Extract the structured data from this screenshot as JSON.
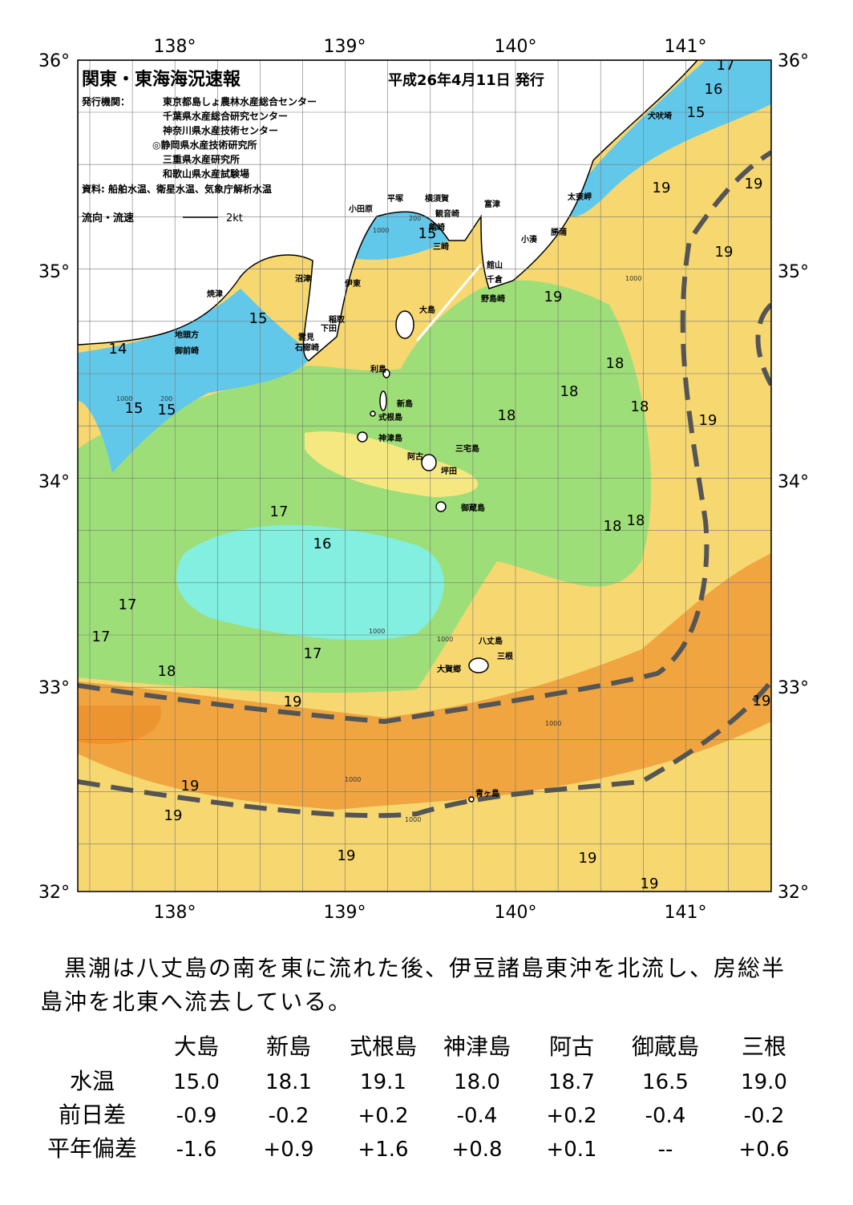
{
  "header": {
    "title": "関東・東海海況速報",
    "date": "平成26年4月11日 発行",
    "issuer_label": "発行機関：",
    "issuers": [
      "東京都島しょ農林水産総合センター",
      "千葉県水産総合研究センター",
      "神奈川県水産技術センター",
      "◎静岡県水産技術研究所",
      "三重県水産研究所",
      "和歌山県水産試験場"
    ],
    "source": "資料: 船舶水温、衛星水温、気象庁解析水温",
    "legend_label": "流向・流速",
    "legend_speed": "2kt"
  },
  "map": {
    "lon_labels": [
      "138°",
      "139°",
      "140°",
      "141°"
    ],
    "lat_labels": [
      "36°",
      "35°",
      "34°",
      "33°",
      "32°"
    ],
    "places": [
      "犬吠埼",
      "太東岬",
      "勝浦",
      "小湊",
      "富津",
      "横須賀",
      "観音崎",
      "剱崎",
      "三崎",
      "平塚",
      "小田原",
      "館山",
      "千倉",
      "野島崎",
      "沼津",
      "伊東",
      "焼津",
      "稲取",
      "下田",
      "雲見",
      "石廊崎",
      "地頭方",
      "御前崎",
      "大島",
      "利島",
      "新島",
      "式根島",
      "神津島",
      "三宅島",
      "阿古",
      "坪田",
      "御蔵島",
      "八丈島",
      "三根",
      "大賀郷",
      "青ヶ島"
    ],
    "temperature_labels": [
      17,
      16,
      15,
      19,
      19,
      19,
      15,
      15,
      14,
      15,
      15,
      19,
      18,
      18,
      18,
      18,
      19,
      17,
      16,
      18,
      18,
      17,
      17,
      17,
      18,
      19,
      19,
      19,
      19,
      19,
      19,
      19
    ],
    "depth_labels": [
      200,
      1000,
      1000,
      200,
      1000,
      1000,
      1000,
      1000,
      1000,
      1000
    ]
  },
  "description": [
    "黒潮は八丈島の南を東に流れた後、伊豆諸島東沖を北流し、房総半",
    "島沖を北東へ流去している。"
  ],
  "table": {
    "columns": [
      "大島",
      "新島",
      "式根島",
      "神津島",
      "阿古",
      "御蔵島",
      "三根"
    ],
    "rows": [
      {
        "label": "水温",
        "values": [
          "15.0",
          "18.1",
          "19.1",
          "18.0",
          "18.7",
          "16.5",
          "19.0"
        ]
      },
      {
        "label": "前日差",
        "values": [
          "-0.9",
          "-0.2",
          "+0.2",
          "-0.4",
          "+0.2",
          "-0.4",
          "-0.2"
        ]
      },
      {
        "label": "平年偏差",
        "values": [
          "-1.6",
          "+0.9",
          "+1.6",
          "+0.8",
          "+0.1",
          "--",
          "+0.6"
        ]
      }
    ]
  }
}
